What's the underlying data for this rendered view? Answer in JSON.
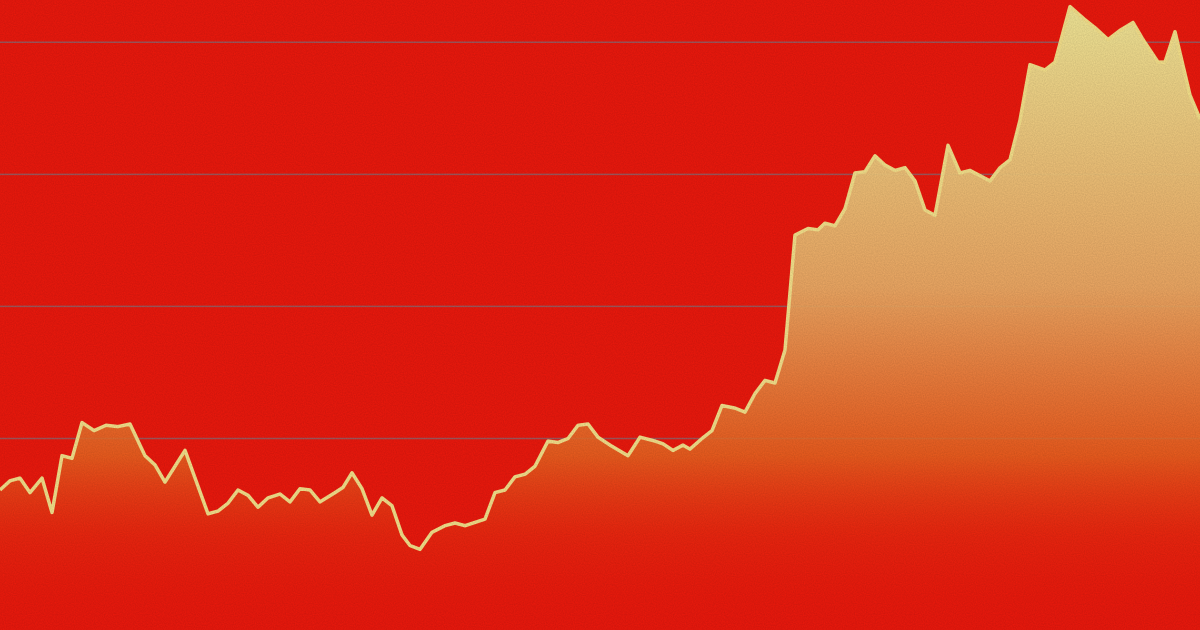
{
  "chart_data": {
    "type": "area",
    "x": [
      0,
      10,
      20,
      30,
      42,
      52,
      62,
      72,
      82,
      94,
      106,
      118,
      130,
      145,
      155,
      165,
      185,
      208,
      218,
      228,
      238,
      248,
      258,
      268,
      280,
      290,
      300,
      310,
      320,
      335,
      343,
      352,
      362,
      372,
      382,
      392,
      402,
      410,
      420,
      432,
      445,
      455,
      465,
      485,
      495,
      505,
      515,
      525,
      535,
      548,
      558,
      568,
      578,
      588,
      598,
      610,
      628,
      640,
      655,
      663,
      673,
      683,
      690,
      702,
      712,
      722,
      735,
      745,
      755,
      765,
      775,
      785,
      795,
      808,
      818,
      825,
      835,
      845,
      855,
      865,
      875,
      885,
      895,
      905,
      915,
      925,
      935,
      948,
      960,
      970,
      980,
      990,
      1000,
      1010,
      1020,
      1030,
      1045,
      1055,
      1070,
      1085,
      1095,
      1108,
      1120,
      1133,
      1143,
      1158,
      1165,
      1175,
      1190,
      1200
    ],
    "values": [
      61,
      68,
      70,
      59,
      70,
      44,
      87,
      85,
      112,
      106,
      110,
      109,
      111,
      87,
      80,
      67,
      91,
      43,
      45,
      51,
      61,
      57,
      48,
      55,
      58,
      52,
      62,
      61,
      52,
      59,
      63,
      74,
      62,
      42,
      55,
      49,
      27,
      19,
      16,
      29,
      34,
      36,
      34,
      39,
      59,
      61,
      71,
      73,
      79,
      98,
      97,
      100,
      110,
      111,
      101,
      95,
      87,
      101,
      98,
      96,
      91,
      95,
      92,
      100,
      106,
      125,
      123,
      120,
      134,
      144,
      142,
      167,
      254,
      259,
      258,
      263,
      261,
      274,
      301,
      302,
      314,
      307,
      303,
      305,
      295,
      273,
      269,
      322,
      301,
      303,
      299,
      295,
      305,
      311,
      341,
      383,
      379,
      385,
      427,
      417,
      411,
      402,
      409,
      415,
      402,
      385,
      385,
      408,
      360,
      342
    ],
    "color": "#fbe68e",
    "xlim": [
      0,
      1200
    ],
    "ylim": [
      -45,
      432
    ],
    "yticks": [
      100,
      200,
      300,
      400
    ],
    "grid": true
  }
}
